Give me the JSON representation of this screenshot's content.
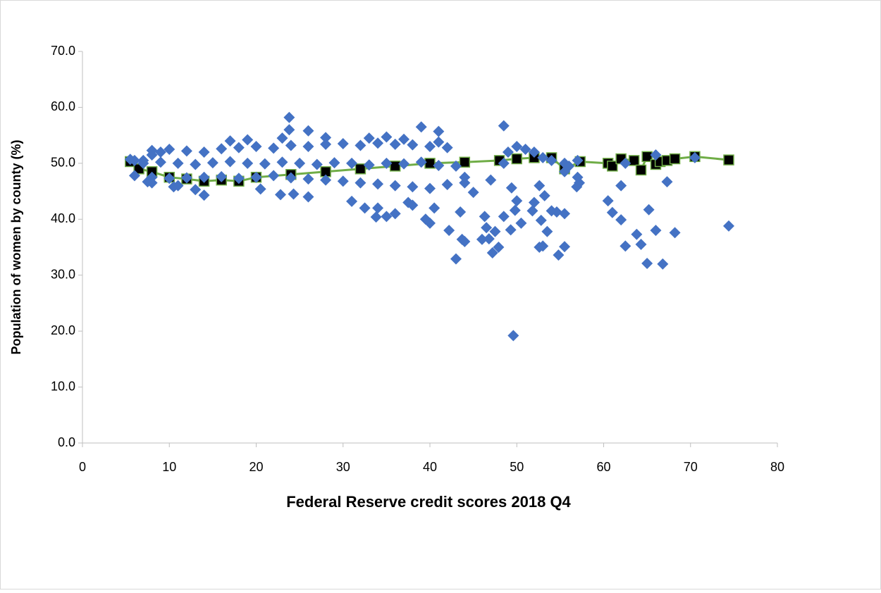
{
  "chart_data": {
    "type": "scatter",
    "x_label": "Federal Reserve credit scores 2018 Q4",
    "y_label": "Population of women by county (%)",
    "xlim": [
      0,
      80
    ],
    "xticks": [
      0,
      10,
      20,
      30,
      40,
      50,
      60,
      70,
      80
    ],
    "ylim": [
      0,
      70
    ],
    "yticks": [
      {
        "value": 0,
        "label": "0.0"
      },
      {
        "value": 10,
        "label": "10.0"
      },
      {
        "value": 20,
        "label": "20.0"
      },
      {
        "value": 30,
        "label": "30.0"
      },
      {
        "value": 40,
        "label": "40.0"
      },
      {
        "value": 50,
        "label": "50.0"
      },
      {
        "value": 60,
        "label": "60.0"
      },
      {
        "value": 70,
        "label": "70.0"
      }
    ],
    "grid": false,
    "series": [
      {
        "color": "#000000",
        "line_color": "#70ad47",
        "marker": "square",
        "line": true,
        "x": [
          5.5,
          6.5,
          8,
          10,
          12,
          14,
          16,
          18,
          20,
          24,
          28,
          32,
          36,
          40,
          44,
          48,
          50,
          52,
          54,
          55.5,
          57.3,
          60.5,
          61,
          62,
          63.5,
          64.3,
          65,
          66,
          66.5,
          67.3,
          68.2,
          70.5,
          74.4
        ],
        "values": [
          50.3,
          49,
          48.5,
          47.5,
          47.2,
          46.8,
          47,
          46.8,
          47.5,
          48,
          48.5,
          49,
          49.5,
          50,
          50.2,
          50.5,
          50.8,
          51,
          51,
          49,
          50.3,
          50,
          49.5,
          50.8,
          50.5,
          48.8,
          51.2,
          49.8,
          50.3,
          50.5,
          50.8,
          51.2,
          50.6
        ]
      },
      {
        "color": "#4472c4",
        "marker": "diamond",
        "line": false,
        "x": [
          23.8,
          23.8,
          39,
          41,
          48.5,
          26,
          43,
          49.6,
          65,
          66.8,
          74.4,
          68.2,
          66,
          64.3,
          63.8,
          62.5,
          62,
          62,
          61,
          60.5,
          65.2,
          67.3,
          70.5,
          66,
          57.2,
          56.9,
          57,
          55.5,
          54.8,
          54.6,
          55.5,
          53,
          52.6,
          53.5,
          52.8,
          54,
          53.2,
          52.6,
          52,
          51.8,
          50.5,
          49.8,
          50,
          49.4,
          49.3,
          48.5,
          47.9,
          47.5,
          47.2,
          46.8,
          46.5,
          46,
          46.3,
          44,
          43.7,
          42.2,
          43.5,
          40,
          39.5,
          40.5,
          38,
          37.5,
          36,
          35,
          33.8,
          34,
          31,
          32.5,
          26,
          24.3,
          22.8,
          20.5,
          14,
          13,
          10.5,
          11,
          8,
          7.5,
          45,
          44,
          47,
          48.5,
          49,
          50,
          51,
          52,
          53,
          54,
          55.5,
          55.5,
          56,
          57,
          62.5,
          5.5,
          6,
          7,
          8,
          9,
          6,
          8,
          10,
          12,
          14,
          16,
          18,
          20,
          22,
          24,
          26,
          28,
          30,
          32,
          34,
          36,
          38,
          40,
          42,
          44,
          7,
          9,
          11,
          13,
          15,
          17,
          19,
          21,
          23,
          25,
          27,
          29,
          31,
          33,
          35,
          37,
          39,
          41,
          43,
          8,
          10,
          12,
          14,
          16,
          18,
          20,
          22,
          24,
          26,
          28,
          30,
          32,
          34,
          36,
          38,
          40,
          42,
          17,
          19,
          23,
          28,
          33,
          35,
          37,
          41
        ],
        "values": [
          58.2,
          56,
          56.5,
          55.7,
          56.7,
          55.8,
          32.9,
          19.2,
          32.1,
          32,
          38.8,
          37.6,
          38,
          35.5,
          37.3,
          35.2,
          46,
          39.9,
          41.2,
          43.3,
          41.7,
          46.7,
          51,
          51.5,
          46.5,
          45.8,
          47.5,
          35.1,
          33.6,
          41.3,
          41,
          35.2,
          35,
          37.8,
          39.8,
          41.5,
          44.2,
          46,
          43,
          41.5,
          39.3,
          41.6,
          43.3,
          45.6,
          38.1,
          40.5,
          35,
          37.8,
          34,
          36.5,
          38.5,
          36.4,
          40.5,
          36,
          36.4,
          38,
          41.3,
          39.3,
          40,
          42,
          42.5,
          43,
          41,
          40.5,
          40.4,
          42,
          43.2,
          42,
          44,
          44.5,
          44.4,
          45.4,
          44.3,
          45.3,
          45.8,
          46,
          46.5,
          46.7,
          44.8,
          47.5,
          47,
          50,
          52,
          53,
          52.5,
          52,
          51,
          50.5,
          50,
          48.5,
          49.5,
          50.5,
          50,
          50.7,
          50.5,
          50.5,
          51.5,
          52,
          47.8,
          47.5,
          47.3,
          47.4,
          47.5,
          47.6,
          47.3,
          47.5,
          47.8,
          47.4,
          47.2,
          47,
          46.8,
          46.5,
          46.3,
          46,
          45.8,
          45.5,
          46.2,
          46.5,
          50,
          50.2,
          50,
          49.8,
          50.1,
          50.3,
          50,
          49.9,
          50.2,
          50,
          49.8,
          50.1,
          50,
          49.7,
          50,
          49.9,
          50.2,
          49.6,
          49.5,
          52.3,
          52.5,
          52.2,
          52,
          52.6,
          52.8,
          53,
          52.7,
          53.2,
          53,
          53.4,
          53.5,
          53.2,
          53.6,
          53.4,
          53.3,
          53,
          52.8,
          54,
          54.2,
          54.5,
          54.6,
          54.5,
          54.7,
          54.3,
          53.8
        ]
      }
    ]
  }
}
